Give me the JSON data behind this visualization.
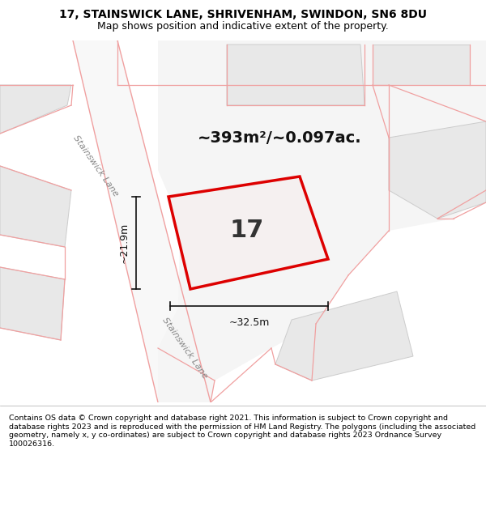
{
  "title_line1": "17, STAINSWICK LANE, SHRIVENHAM, SWINDON, SN6 8DU",
  "title_line2": "Map shows position and indicative extent of the property.",
  "footer_text": "Contains OS data © Crown copyright and database right 2021. This information is subject to Crown copyright and database rights 2023 and is reproduced with the permission of HM Land Registry. The polygons (including the associated geometry, namely x, y co-ordinates) are subject to Crown copyright and database rights 2023 Ordnance Survey 100026316.",
  "area_label": "~393m²/~0.097ac.",
  "property_number": "17",
  "dim_width": "~32.5m",
  "dim_height": "~21.9m",
  "road_label": "Stainswick Lane",
  "road_label2": "Stainswick Lane",
  "map_bg": "#ffffff",
  "block_fill": "#e8e8e8",
  "block_stroke": "#cccccc",
  "road_line_color": "#f0a0a0",
  "road_fill": "#f5f5f5",
  "property_fill": "#f0ecec",
  "property_stroke": "#dd0000",
  "dim_color": "#111111",
  "title_fontsize": 10,
  "subtitle_fontsize": 9,
  "area_fontsize": 14,
  "num_fontsize": 22,
  "dim_fontsize": 9,
  "road_label_fontsize": 8,
  "footer_fontsize": 6.8
}
